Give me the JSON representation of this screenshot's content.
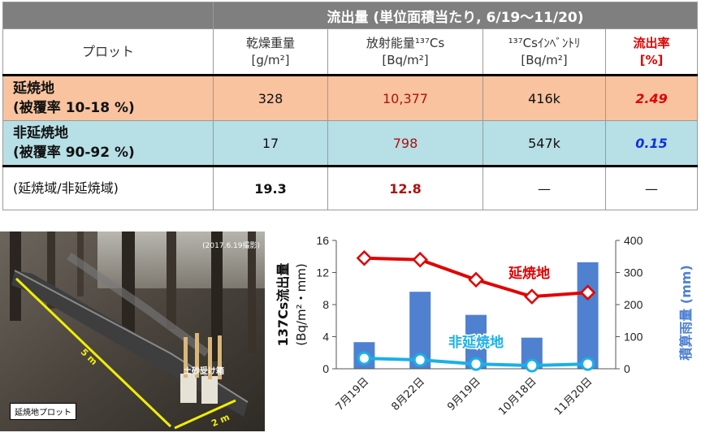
{
  "table": {
    "band_title": "流出量 (単位面積当たり, 6/19～11/20)",
    "plot_header": "プロット",
    "columns": [
      {
        "line1": "乾燥重量",
        "line2": "[g/m²]",
        "red": false
      },
      {
        "line1": "放射能量¹³⁷Cs",
        "line2": "[Bq/m²]",
        "red": false
      },
      {
        "line1": "¹³⁷Csｲﾝﾍﾞﾝﾄﾘ",
        "line2": "[Bq/m²]",
        "red": false
      },
      {
        "line1": "流出率",
        "line2": "[%]",
        "red": true
      }
    ],
    "rows": [
      {
        "name": "延焼地",
        "sub": "(被覆率 10-18 %)",
        "values": [
          "328",
          "10,377",
          "416k",
          "2.49"
        ]
      },
      {
        "name": "非延焼地",
        "sub": "(被覆率 90-92 %)",
        "values": [
          "17",
          "798",
          "547k",
          "0.15"
        ]
      },
      {
        "name": "(延焼域/非延焼域)",
        "sub": "",
        "values": [
          "19.3",
          "12.8",
          "—",
          "—"
        ]
      }
    ]
  },
  "photo": {
    "date": "(2017.6.19撮影)",
    "tag": "延焼地プロット",
    "box_label": "土砂受け箱",
    "dim_long": "5 m",
    "dim_short": "2 m"
  },
  "chart_data": {
    "type": "bar+line",
    "categories": [
      "7月19日",
      "8月22日",
      "9月19日",
      "10月18日",
      "11月20日"
    ],
    "ylabel_left_1": "137Cs流出量",
    "ylabel_left_2": "(Bq/m²・mm)",
    "ylabel_right": "積算雨量 (mm)",
    "ylim_left": [
      0,
      16
    ],
    "ylim_right": [
      0,
      400
    ],
    "yticks_left": [
      "0",
      "4",
      "8",
      "12",
      "16"
    ],
    "yticks_right": [
      "0",
      "100",
      "200",
      "300",
      "400"
    ],
    "bars": {
      "name": "積算雨量",
      "values": [
        83,
        240,
        168,
        97,
        332
      ],
      "color": "#4f81d0"
    },
    "series": [
      {
        "name": "延焼地",
        "values": [
          13.8,
          13.6,
          11.1,
          9.0,
          9.5
        ],
        "color": "#e00000"
      },
      {
        "name": "非延焼地",
        "values": [
          1.3,
          1.1,
          0.6,
          0.4,
          0.6
        ],
        "color": "#1ab0e8"
      }
    ],
    "colors": {
      "series_red": "#e00000",
      "series_cyan": "#1ab0e8",
      "bars": "#4f81d0",
      "right_axis_label": "#4f81d0"
    }
  }
}
